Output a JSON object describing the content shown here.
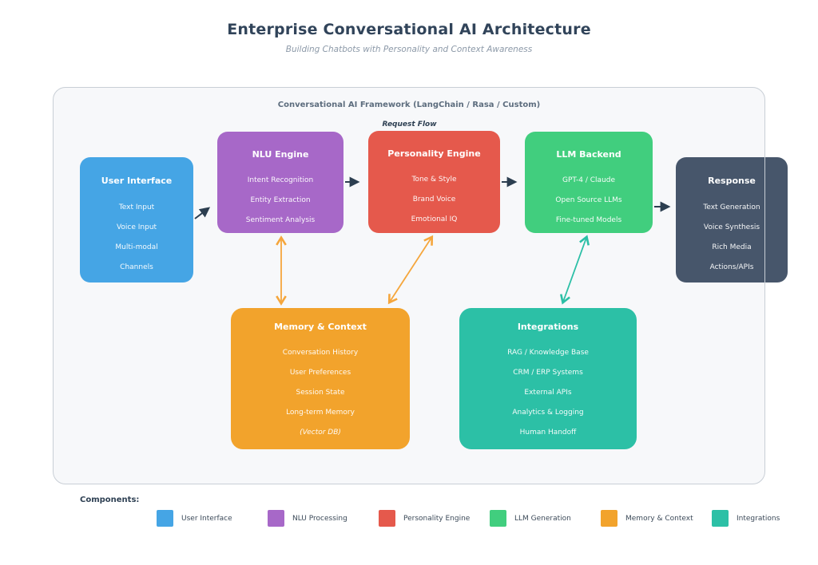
{
  "page": {
    "title": "Enterprise Conversational AI Architecture",
    "subtitle": "Building Chatbots with Personality and Context Awareness"
  },
  "framework": {
    "label": "Conversational AI Framework (LangChain / Rasa / Custom)",
    "flow_label": "Request Flow"
  },
  "nodes": [
    {
      "id": "user-interface",
      "title": "User Interface",
      "color": "#45a5e5",
      "items": [
        "Text Input",
        "Voice Input",
        "Multi-modal",
        "Channels"
      ]
    },
    {
      "id": "nlu-engine",
      "title": "NLU Engine",
      "color": "#a768c8",
      "items": [
        "Intent Recognition",
        "Entity Extraction",
        "Sentiment Analysis"
      ]
    },
    {
      "id": "personality-engine",
      "title": "Personality Engine",
      "color": "#e5594c",
      "items": [
        "Tone & Style",
        "Brand Voice",
        "Emotional IQ"
      ]
    },
    {
      "id": "llm-backend",
      "title": "LLM Backend",
      "color": "#41ce7e",
      "items": [
        "GPT-4 / Claude",
        "Open Source LLMs",
        "Fine-tuned Models"
      ]
    },
    {
      "id": "response",
      "title": "Response",
      "color": "#47566b",
      "items": [
        "Text Generation",
        "Voice Synthesis",
        "Rich Media",
        "Actions/APIs"
      ]
    },
    {
      "id": "memory-context",
      "title": "Memory & Context",
      "color": "#f2a32c",
      "italic_last": true,
      "items": [
        "Conversation History",
        "User Preferences",
        "Session State",
        "Long-term Memory",
        "(Vector DB)"
      ]
    },
    {
      "id": "integrations",
      "title": "Integrations",
      "color": "#2cc0a6",
      "items": [
        "RAG / Knowledge Base",
        "CRM / ERP Systems",
        "External APIs",
        "Analytics & Logging",
        "Human Handoff"
      ]
    }
  ],
  "edges": [
    {
      "from": "user-interface",
      "to": "nlu-engine",
      "color": "#2c3e50",
      "direction": "one-way"
    },
    {
      "from": "nlu-engine",
      "to": "personality-engine",
      "color": "#2c3e50",
      "direction": "one-way"
    },
    {
      "from": "personality-engine",
      "to": "llm-backend",
      "color": "#2c3e50",
      "direction": "one-way"
    },
    {
      "from": "llm-backend",
      "to": "response",
      "color": "#2c3e50",
      "direction": "one-way"
    },
    {
      "from": "nlu-engine",
      "to": "memory-context",
      "color": "#f5a63c",
      "direction": "two-way"
    },
    {
      "from": "personality-engine",
      "to": "memory-context",
      "color": "#f5a63c",
      "direction": "two-way"
    },
    {
      "from": "llm-backend",
      "to": "integrations",
      "color": "#2bbfa6",
      "direction": "two-way"
    }
  ],
  "legend": {
    "label": "Components:",
    "items": [
      {
        "label": "User Interface",
        "color": "#45a5e5"
      },
      {
        "label": "NLU Processing",
        "color": "#a768c8"
      },
      {
        "label": "Personality Engine",
        "color": "#e5594c"
      },
      {
        "label": "LLM Generation",
        "color": "#41ce7e"
      },
      {
        "label": "Memory & Context",
        "color": "#f2a32c"
      },
      {
        "label": "Integrations",
        "color": "#2cc0a6"
      }
    ]
  }
}
